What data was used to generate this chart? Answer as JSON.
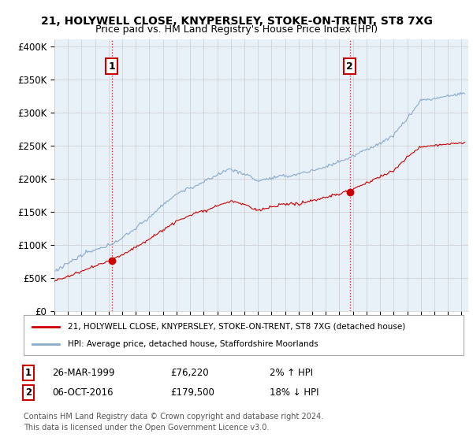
{
  "title_line1": "21, HOLYWELL CLOSE, KNYPERSLEY, STOKE-ON-TRENT, ST8 7XG",
  "title_line2": "Price paid vs. HM Land Registry's House Price Index (HPI)",
  "ylabel_ticks": [
    "£0",
    "£50K",
    "£100K",
    "£150K",
    "£200K",
    "£250K",
    "£300K",
    "£350K",
    "£400K"
  ],
  "ytick_values": [
    0,
    50000,
    100000,
    150000,
    200000,
    250000,
    300000,
    350000,
    400000
  ],
  "ylim": [
    0,
    410000
  ],
  "xlim_start": 1995.0,
  "xlim_end": 2025.5,
  "house_color": "#cc0000",
  "hpi_color": "#88aacc",
  "plot_bg": "#e8f0f8",
  "marker1_date": 1999.23,
  "marker1_value": 76220,
  "marker1_label": "26-MAR-1999",
  "marker1_price": "£76,220",
  "marker1_hpi": "2% ↑ HPI",
  "marker2_date": 2016.77,
  "marker2_value": 179500,
  "marker2_label": "06-OCT-2016",
  "marker2_price": "£179,500",
  "marker2_hpi": "18% ↓ HPI",
  "legend_house": "21, HOLYWELL CLOSE, KNYPERSLEY, STOKE-ON-TRENT, ST8 7XG (detached house)",
  "legend_hpi": "HPI: Average price, detached house, Staffordshire Moorlands",
  "footer1": "Contains HM Land Registry data © Crown copyright and database right 2024.",
  "footer2": "This data is licensed under the Open Government Licence v3.0.",
  "bg_color": "#ffffff",
  "grid_color": "#cccccc"
}
